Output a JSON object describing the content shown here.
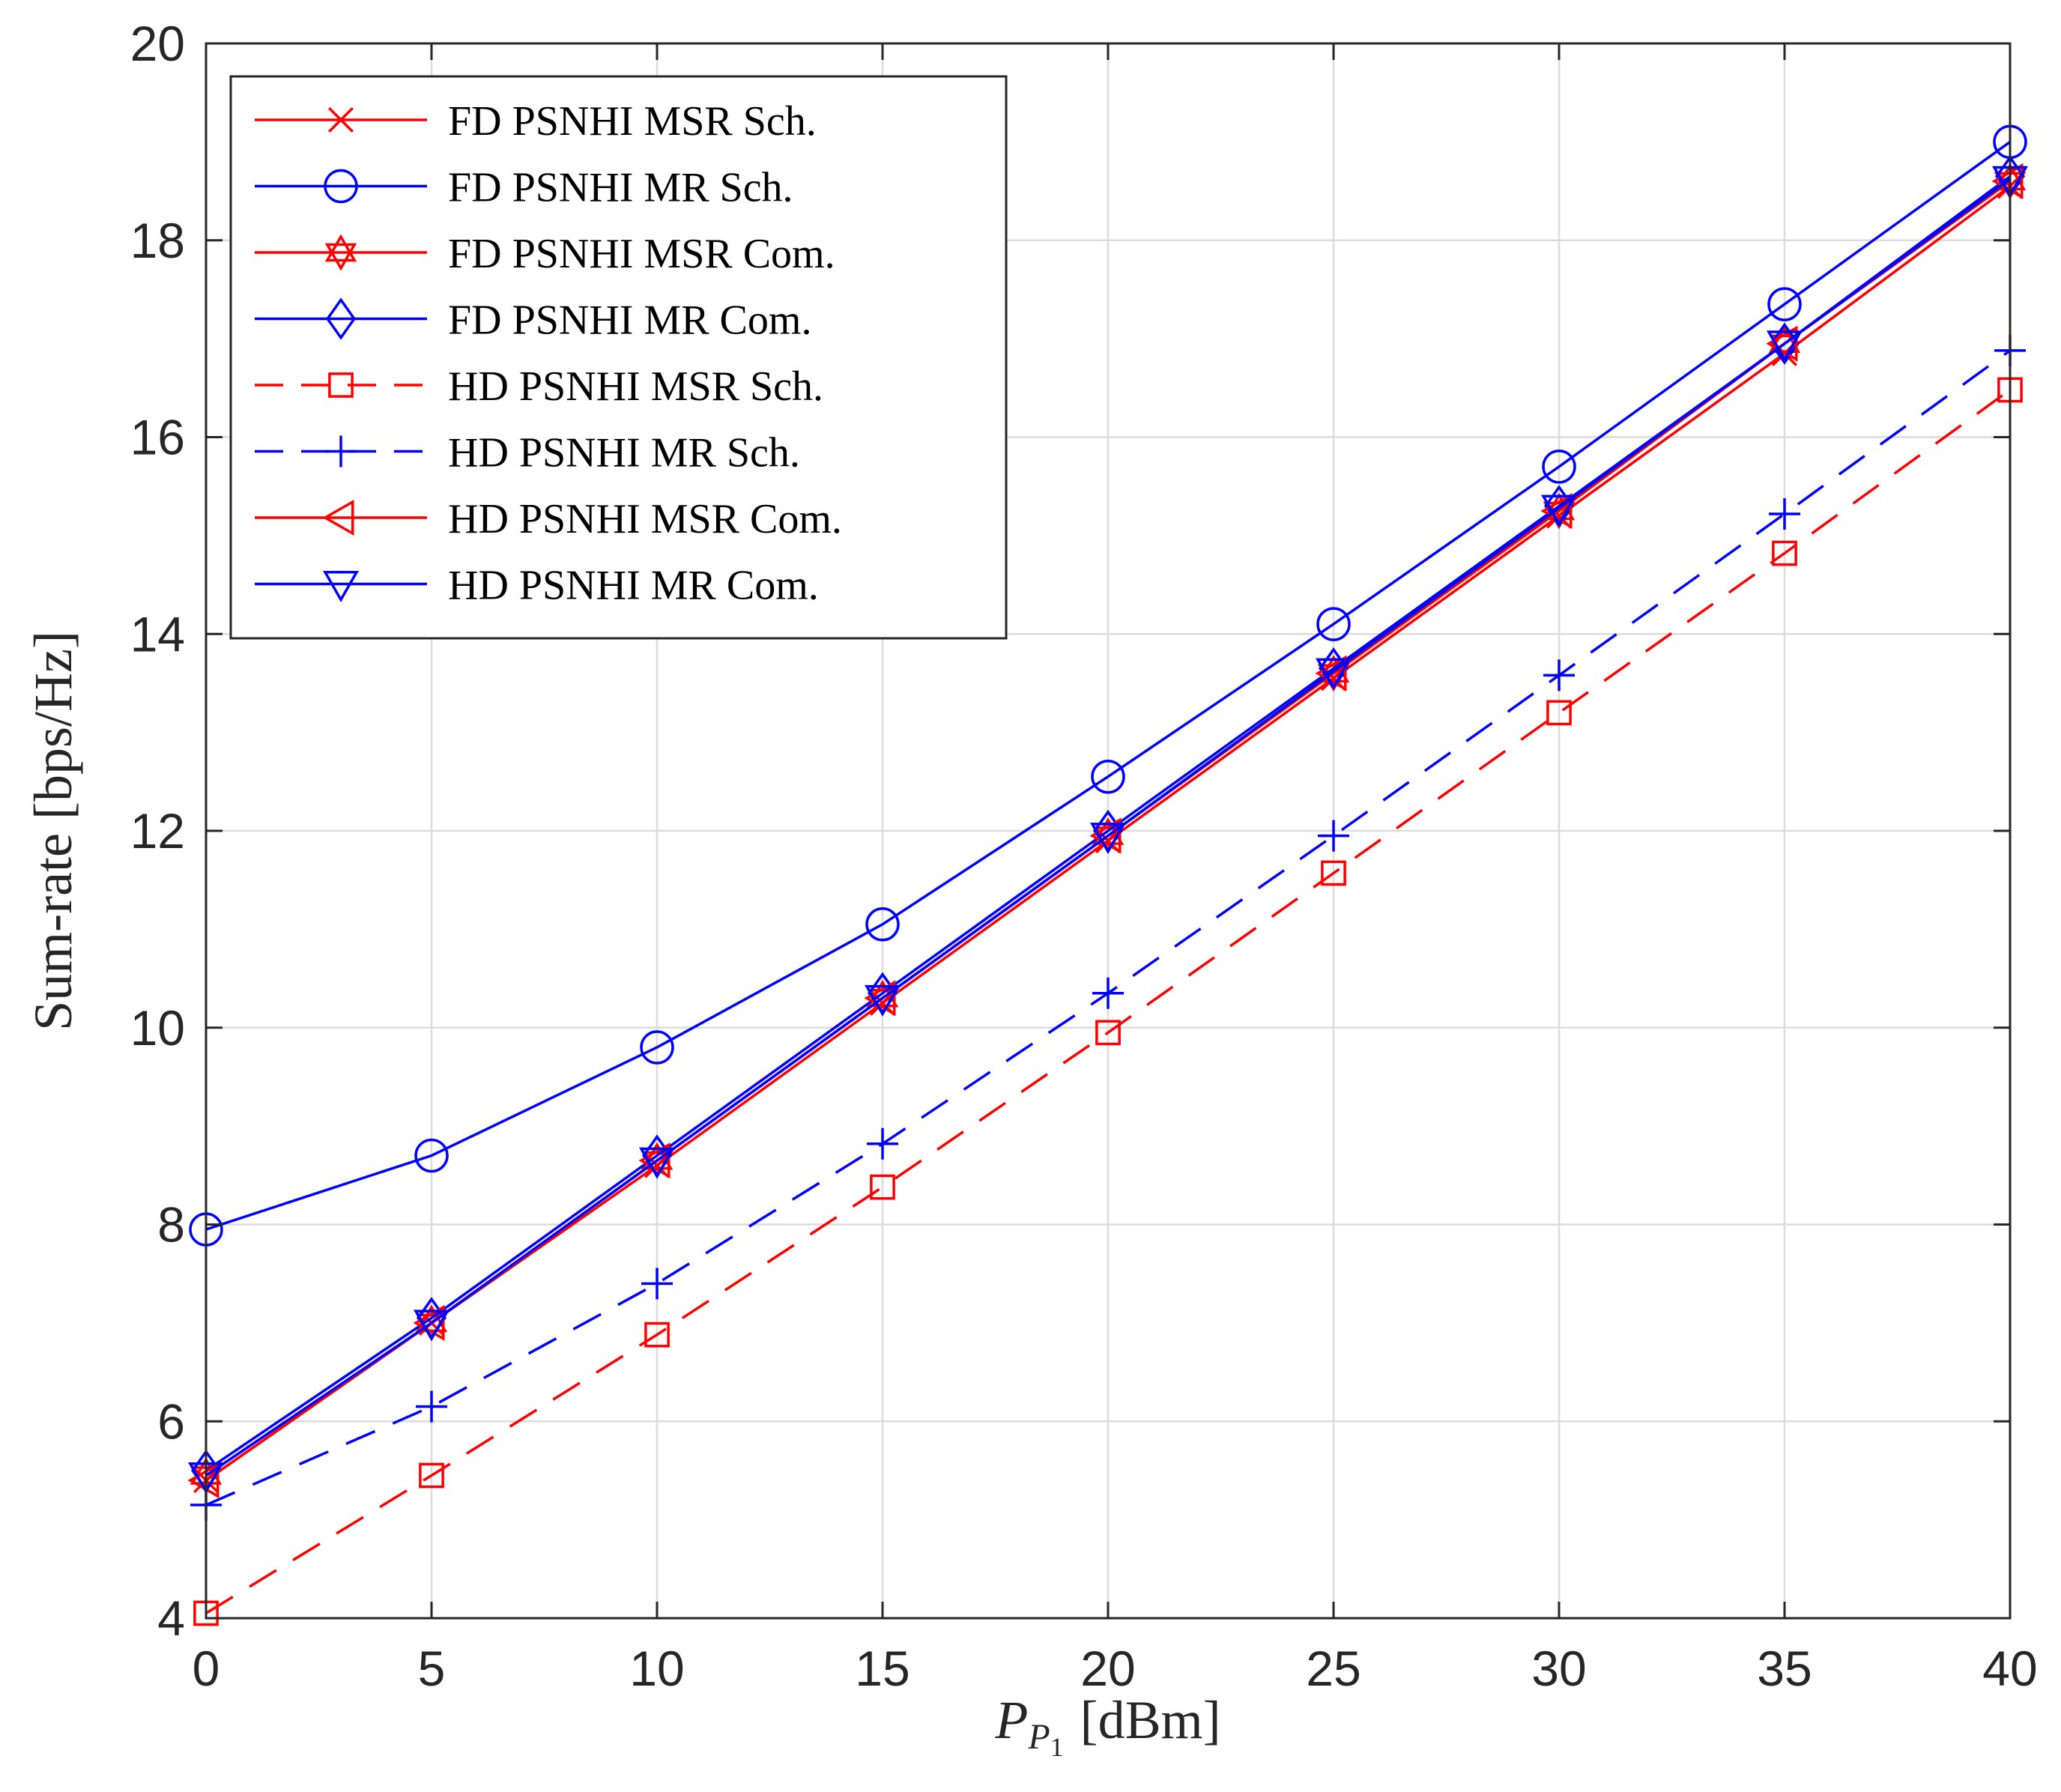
{
  "chart_data": {
    "type": "line",
    "title": "",
    "xlabel_main": "P",
    "xlabel_sub": "P",
    "xlabel_subsub": "1",
    "xlabel_unit": "[dBm]",
    "ylabel": "Sum-rate [bps/Hz]",
    "xlim": [
      0,
      40
    ],
    "ylim": [
      4,
      20
    ],
    "xticks": [
      0,
      5,
      10,
      15,
      20,
      25,
      30,
      35,
      40
    ],
    "yticks": [
      4,
      6,
      8,
      10,
      12,
      14,
      16,
      18,
      20
    ],
    "x": [
      0,
      5,
      10,
      15,
      20,
      25,
      30,
      35,
      40
    ],
    "grid": true,
    "legend_position": "top-left",
    "series": [
      {
        "name": "FD PSNHI MSR Sch.",
        "color": "#ff0000",
        "dash": "solid",
        "marker": "x",
        "values": [
          5.4,
          7.0,
          8.6,
          10.25,
          11.9,
          13.55,
          15.2,
          16.85,
          18.55
        ]
      },
      {
        "name": "FD PSNHI MR Sch.",
        "color": "#0000ff",
        "dash": "solid",
        "marker": "circle",
        "values": [
          7.95,
          8.7,
          9.8,
          11.05,
          12.55,
          14.1,
          15.7,
          17.35,
          19.0
        ]
      },
      {
        "name": "FD PSNHI MSR Com.",
        "color": "#ff0000",
        "dash": "solid",
        "marker": "hexagram",
        "values": [
          5.45,
          7.0,
          8.65,
          10.3,
          11.95,
          13.6,
          15.25,
          16.95,
          18.6
        ]
      },
      {
        "name": "FD PSNHI MR Com.",
        "color": "#0000ff",
        "dash": "solid",
        "marker": "diamond",
        "values": [
          5.5,
          7.05,
          8.7,
          10.35,
          12.0,
          13.65,
          15.3,
          16.95,
          18.65
        ]
      },
      {
        "name": "HD PSNHI MSR Sch.",
        "color": "#ff0000",
        "dash": "dashed",
        "marker": "square",
        "values": [
          4.05,
          5.45,
          6.88,
          8.38,
          9.95,
          11.57,
          13.2,
          14.82,
          16.48
        ]
      },
      {
        "name": "HD PSNHI MR Sch.",
        "color": "#0000ff",
        "dash": "dashed",
        "marker": "plus",
        "values": [
          5.15,
          6.15,
          7.4,
          8.82,
          10.35,
          11.95,
          13.58,
          15.22,
          16.88
        ]
      },
      {
        "name": "HD PSNHI MSR Com.",
        "color": "#ff0000",
        "dash": "solid",
        "marker": "triangle-left",
        "values": [
          5.4,
          7.0,
          8.65,
          10.3,
          11.95,
          13.6,
          15.25,
          16.95,
          18.6
        ]
      },
      {
        "name": "HD PSNHI MR Com.",
        "color": "#0000ff",
        "dash": "solid",
        "marker": "triangle-down",
        "values": [
          5.45,
          7.0,
          8.65,
          10.3,
          11.95,
          13.62,
          15.28,
          16.95,
          18.62
        ]
      }
    ]
  }
}
